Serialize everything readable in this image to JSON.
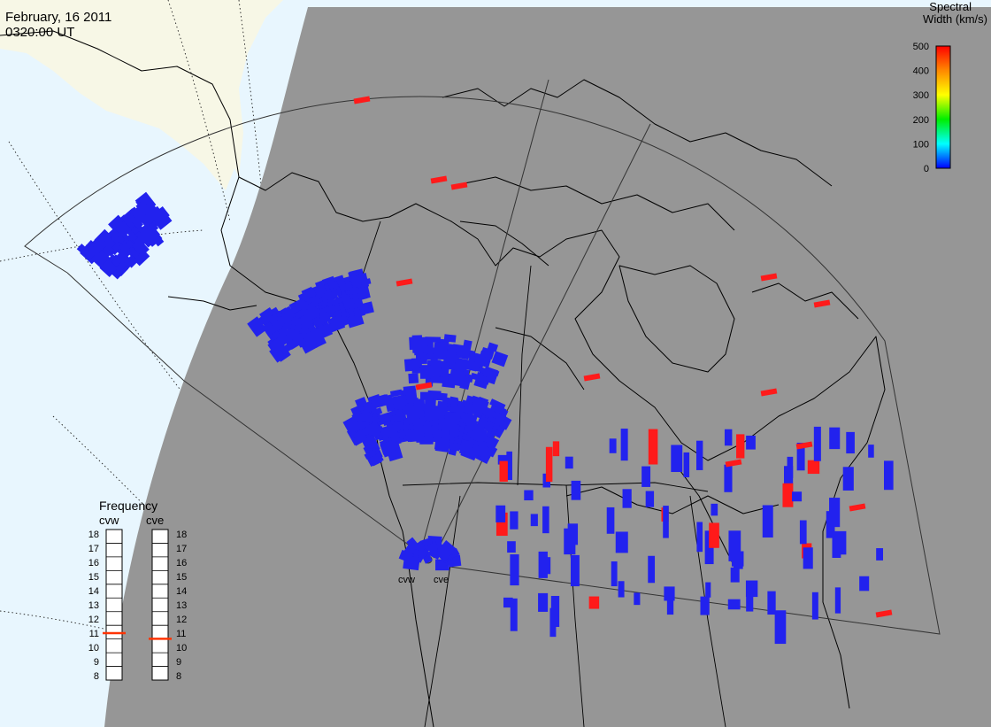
{
  "header": {
    "date": "February, 16 2011",
    "time": "0320:00 UT"
  },
  "colorbar": {
    "title_line1": "Spectral",
    "title_line2": "Width (km/s)",
    "ticks": [
      "500",
      "400",
      "300",
      "200",
      "100",
      "0"
    ],
    "gradient": [
      "#ff0000",
      "#ff8800",
      "#ffff00",
      "#00ee00",
      "#00ffff",
      "#0000ff"
    ]
  },
  "frequency": {
    "title": "Frequency",
    "radars": [
      {
        "name": "cvw",
        "value": 11
      },
      {
        "name": "cve",
        "value": 10.6
      }
    ],
    "scale": [
      "18",
      "17",
      "16",
      "15",
      "14",
      "13",
      "12",
      "11",
      "10",
      "9",
      "8"
    ],
    "indicator_color": "#ff3300"
  },
  "radars": {
    "west_label": "cvw",
    "east_label": "cve"
  },
  "colors": {
    "night": "#969696",
    "ocean_day": "#e8f6fe",
    "land_day": "#f7f7e6",
    "scatter_low": "#2222ee",
    "scatter_high": "#ff1a1a"
  }
}
